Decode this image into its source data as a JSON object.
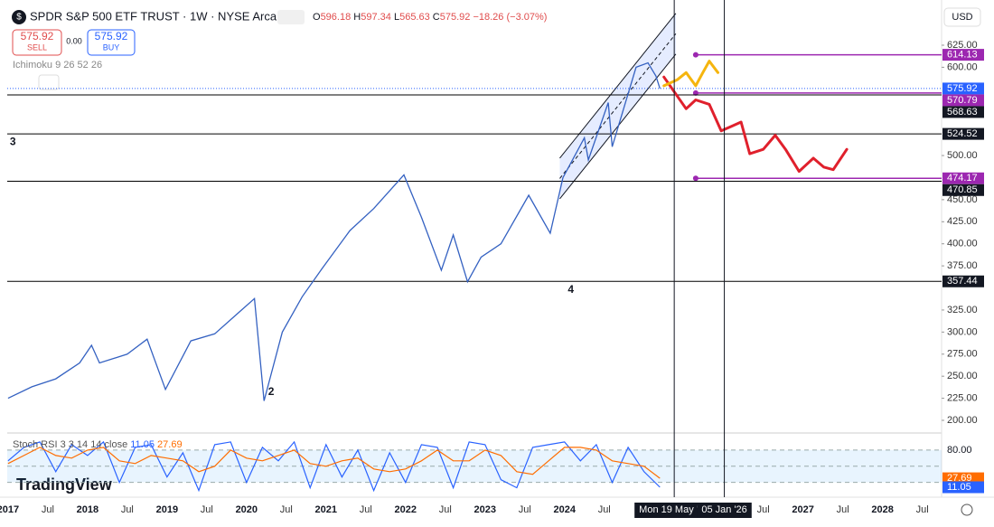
{
  "header": {
    "title": "SPDR S&P 500 ETF TRUST · 1W · NYSE Arca",
    "ohlc": [
      {
        "k": "O",
        "v": "596.18"
      },
      {
        "k": "H",
        "v": "597.34"
      },
      {
        "k": "L",
        "v": "565.63"
      },
      {
        "k": "C",
        "v": "575.92"
      }
    ],
    "change": "−18.26 (−3.07%)",
    "sell_price": "575.92",
    "sell_label": "SELL",
    "spread": "0.00",
    "buy_price": "575.92",
    "buy_label": "BUY",
    "indicator": "Ichimoku 9 26 52 26",
    "currency": "USD",
    "logo": "TradingView"
  },
  "chart_data": [
    {
      "type": "line",
      "color": "#3461c1",
      "x": [
        2017.0,
        2017.3,
        2017.6,
        2017.9,
        2018.05,
        2018.15,
        2018.5,
        2018.75,
        2018.98,
        2019.3,
        2019.6,
        2019.9,
        2020.1,
        2020.22,
        2020.45,
        2020.7,
        2020.95,
        2021.3,
        2021.6,
        2021.98,
        2022.2,
        2022.45,
        2022.6,
        2022.78,
        2022.95,
        2023.2,
        2023.55,
        2023.82,
        2023.98,
        2024.25,
        2024.3,
        2024.55,
        2024.6,
        2024.9,
        2025.05,
        2025.15,
        2025.2
      ],
      "series": [
        {
          "color": "#3461c1",
          "values": [
            225,
            238,
            247,
            265,
            285,
            265,
            275,
            292,
            235,
            290,
            298,
            322,
            338,
            222,
            300,
            340,
            372,
            415,
            440,
            478,
            430,
            370,
            410,
            357,
            385,
            400,
            455,
            412,
            475,
            520,
            495,
            560,
            510,
            600,
            605,
            590,
            575.92
          ]
        }
      ],
      "xlim": [
        2016.99,
        2028.72
      ],
      "ylim": [
        186.7,
        676.2
      ],
      "yticks": [
        {
          "value": 625,
          "label": "625.00"
        },
        {
          "value": 600,
          "label": "600.00"
        },
        {
          "value": 500,
          "label": "500.00"
        },
        {
          "value": 450,
          "label": "450.00"
        },
        {
          "value": 425,
          "label": "425.00"
        },
        {
          "value": 400,
          "label": "400.00"
        },
        {
          "value": 375,
          "label": "375.00"
        },
        {
          "value": 325,
          "label": "325.00"
        },
        {
          "value": 300,
          "label": "300.00"
        },
        {
          "value": 275,
          "label": "275.00"
        },
        {
          "value": 250,
          "label": "250.00"
        },
        {
          "value": 225,
          "label": "225.00"
        },
        {
          "value": 200,
          "label": "200.00"
        }
      ],
      "levels": [
        {
          "value": 614.13,
          "color": "#9c27b0",
          "from": 2025.65
        },
        {
          "value": 570.79,
          "color": "#9c27b0",
          "from": 2025.65
        },
        {
          "value": 568.63,
          "color": "#000000"
        },
        {
          "value": 524.52,
          "color": "#000000"
        },
        {
          "value": 474.17,
          "color": "#9c27b0",
          "from": 2025.65
        },
        {
          "value": 470.85,
          "color": "#000000"
        },
        {
          "value": 357.44,
          "color": "#000000"
        }
      ],
      "channel": {
        "x": [
          2023.94,
          2025.4
        ],
        "upper": [
          497,
          661
        ],
        "lower": [
          451,
          615
        ]
      },
      "projections": [
        {
          "color": "#e0202c",
          "x": [
            2025.25,
            2025.53,
            2025.65,
            2025.82,
            2025.97,
            2026.1,
            2026.22,
            2026.33,
            2026.5,
            2026.65,
            2026.78,
            2026.95,
            2027.13,
            2027.26,
            2027.38,
            2027.55
          ],
          "values": [
            589,
            553,
            563,
            558,
            528,
            533,
            538,
            502,
            507,
            523,
            507,
            482,
            497,
            487,
            484,
            507
          ]
        },
        {
          "color": "#f5b50e",
          "x": [
            2025.25,
            2025.42,
            2025.53,
            2025.65,
            2025.74,
            2025.82,
            2025.93
          ],
          "values": [
            579,
            586,
            594,
            579,
            594,
            607,
            594
          ]
        }
      ],
      "verticals": [
        {
          "x": 2025.38,
          "label": "Mon 19 May '25"
        },
        {
          "x": 2026.01,
          "label": "05 Jan '26"
        }
      ],
      "annotations": [
        {
          "text": "3",
          "x": 2017.06,
          "y": 515
        },
        {
          "text": "2",
          "x": 2020.31,
          "y": 231.8
        },
        {
          "text": "4",
          "x": 2024.08,
          "y": 347.5
        }
      ]
    },
    {
      "type": "line",
      "title": "Stoch RSI 3 3 14 14 close",
      "x": [
        2017.0,
        2017.2,
        2017.4,
        2017.6,
        2017.8,
        2018.0,
        2018.2,
        2018.4,
        2018.6,
        2018.8,
        2019.0,
        2019.2,
        2019.4,
        2019.6,
        2019.8,
        2020.0,
        2020.2,
        2020.4,
        2020.6,
        2020.8,
        2021.0,
        2021.2,
        2021.4,
        2021.6,
        2021.8,
        2022.0,
        2022.2,
        2022.4,
        2022.6,
        2022.8,
        2023.0,
        2023.2,
        2023.4,
        2023.6,
        2023.8,
        2024.0,
        2024.2,
        2024.4,
        2024.6,
        2024.8,
        2025.0,
        2025.2
      ],
      "series": [
        {
          "color": "#2962ff",
          "values": [
            60,
            85,
            95,
            40,
            90,
            70,
            95,
            20,
            85,
            90,
            30,
            75,
            5,
            90,
            95,
            20,
            85,
            60,
            95,
            10,
            90,
            30,
            80,
            5,
            75,
            20,
            90,
            85,
            10,
            95,
            90,
            25,
            10,
            85,
            90,
            95,
            60,
            90,
            20,
            85,
            40,
            11.05
          ]
        },
        {
          "color": "#ff6d00",
          "values": [
            55,
            70,
            85,
            70,
            65,
            80,
            85,
            60,
            55,
            70,
            65,
            60,
            40,
            50,
            80,
            65,
            60,
            70,
            80,
            55,
            50,
            60,
            65,
            45,
            40,
            45,
            60,
            80,
            60,
            60,
            80,
            70,
            40,
            35,
            60,
            85,
            85,
            80,
            60,
            55,
            50,
            27.69
          ]
        }
      ],
      "xlim": [
        2016.99,
        2028.72
      ],
      "ylim": [
        -4,
        110
      ],
      "yticks": [
        {
          "value": 80,
          "label": "80.00"
        }
      ],
      "band": [
        20,
        80
      ],
      "hlines": [
        20,
        50,
        80
      ],
      "xticks": [
        2017,
        {
          "value": 2017.5,
          "label": "Jul"
        },
        2018,
        {
          "value": 2018.5,
          "label": "Jul"
        },
        2019,
        {
          "value": 2019.5,
          "label": "Jul"
        },
        2020,
        {
          "value": 2020.5,
          "label": "Jul"
        },
        2021,
        {
          "value": 2021.5,
          "label": "Jul"
        },
        2022,
        {
          "value": 2022.5,
          "label": "Jul"
        },
        2023,
        {
          "value": 2023.5,
          "label": "Jul"
        },
        2024,
        {
          "value": 2024.5,
          "label": "Jul"
        },
        {
          "value": 2026.5,
          "label": "Jul"
        },
        2027,
        {
          "value": 2027.5,
          "label": "Jul"
        },
        2028,
        {
          "value": 2028.5,
          "label": "Jul"
        }
      ]
    }
  ]
}
